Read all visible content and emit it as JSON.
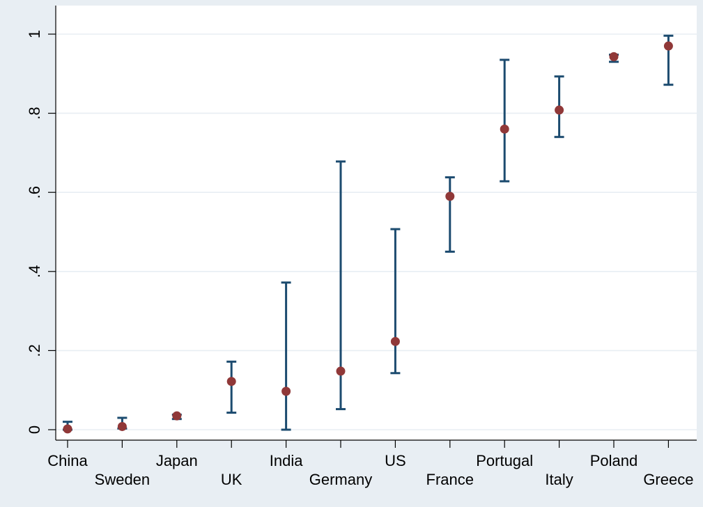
{
  "chart_data": {
    "type": "scatter",
    "subtype": "point-with-error-bars",
    "title": "",
    "xlabel": "",
    "ylabel": "",
    "ylim": [
      0,
      1
    ],
    "y_ticks": [
      "0",
      ".2",
      ".4",
      ".6",
      ".8",
      "1"
    ],
    "y_tick_values": [
      0,
      0.2,
      0.4,
      0.6,
      0.8,
      1
    ],
    "grid": true,
    "legend": "none",
    "categories": [
      "China",
      "Sweden",
      "Japan",
      "UK",
      "India",
      "Germany",
      "US",
      "France",
      "Portugal",
      "Italy",
      "Poland",
      "Greece"
    ],
    "series": [
      {
        "values": [
          0.002,
          0.008,
          0.035,
          0.122,
          0.097,
          0.148,
          0.223,
          0.59,
          0.76,
          0.808,
          0.943,
          0.97
        ],
        "lower": [
          0.0,
          0.003,
          0.027,
          0.043,
          0.0,
          0.052,
          0.143,
          0.45,
          0.628,
          0.74,
          0.93,
          0.872
        ],
        "upper": [
          0.02,
          0.03,
          0.038,
          0.172,
          0.372,
          0.678,
          0.507,
          0.638,
          0.935,
          0.893,
          0.948,
          0.996
        ]
      }
    ],
    "colors": {
      "background": "#e8eef3",
      "plot_area": "#ffffff",
      "gridline": "#e8eef3",
      "error_bar": "#1c4b6f",
      "marker": "#903838"
    }
  }
}
